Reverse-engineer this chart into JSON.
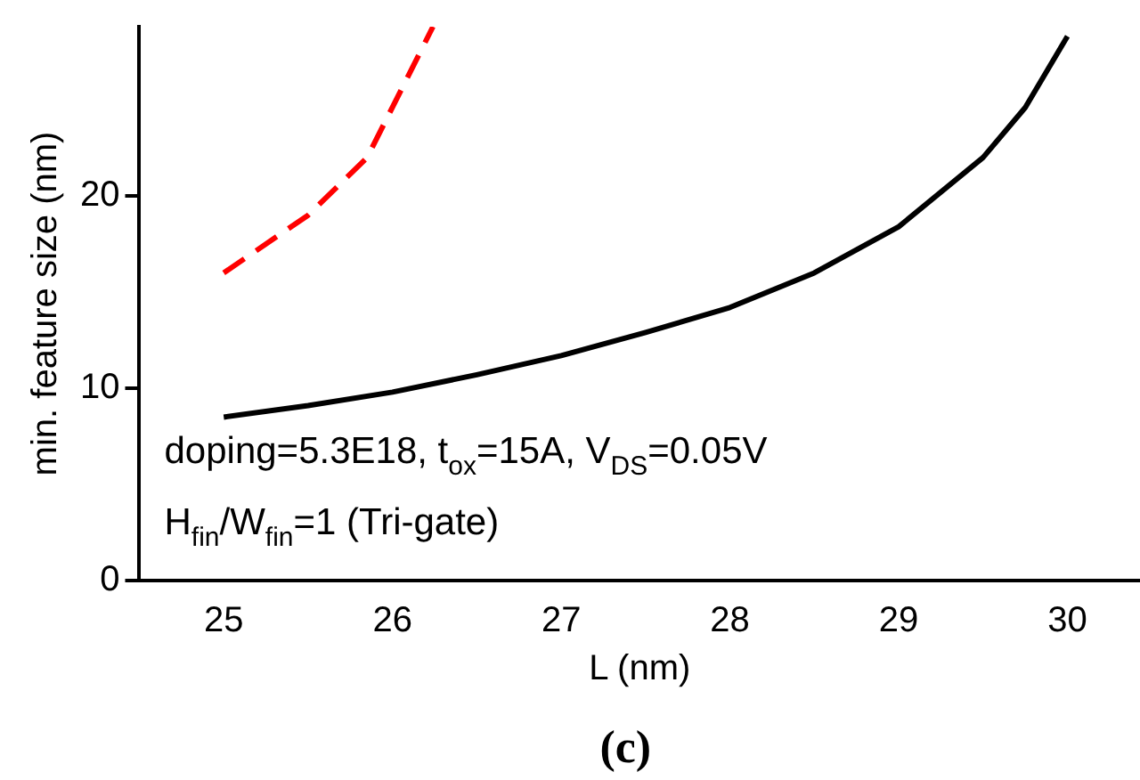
{
  "chart_data": {
    "type": "line",
    "xlabel": "L (nm)",
    "ylabel": "min. feature size (nm)",
    "xlim": [
      24.5,
      30.43
    ],
    "ylim": [
      0,
      28.8
    ],
    "xticks": [
      25,
      26,
      27,
      28,
      29,
      30
    ],
    "yticks": [
      0,
      10,
      20
    ],
    "grid": false,
    "legend": false,
    "marker": "none",
    "series": [
      {
        "color": "#000000",
        "line_style": "solid",
        "x": [
          25,
          25.5,
          26,
          26.5,
          27,
          27.5,
          28,
          28.5,
          29,
          29.5,
          29.75,
          30
        ],
        "values": [
          8.5,
          9.1,
          9.8,
          10.7,
          11.7,
          12.9,
          14.2,
          16.0,
          18.4,
          22.0,
          24.6,
          28.3
        ]
      },
      {
        "color": "#ff0000",
        "line_style": "dashed",
        "x": [
          25,
          25.5,
          25.85,
          26.24
        ],
        "values": [
          16.0,
          19.0,
          22.0,
          28.8
        ]
      }
    ],
    "annotations": [
      "doping=5.3E18, t$_{ox}$=15A, V$_{DS}$=0.05V",
      "H$_{fin}$/W$_{fin}$=1 (Tri-gate)",
      "(c)"
    ]
  }
}
